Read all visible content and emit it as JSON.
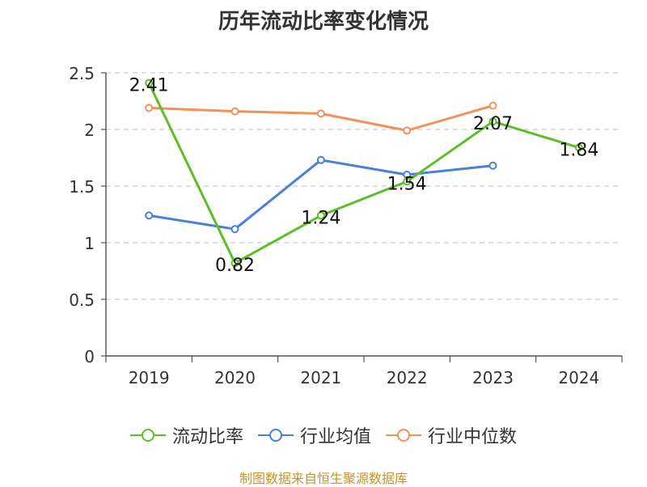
{
  "chart_data": {
    "type": "line",
    "title": "历年流动比率变化情况",
    "categories": [
      "2019",
      "2020",
      "2021",
      "2022",
      "2023",
      "2024"
    ],
    "ylim": [
      0,
      2.5
    ],
    "yticks": [
      "0",
      "0.5",
      "1",
      "1.5",
      "2",
      "2.5"
    ],
    "grid": true,
    "legend_position": "bottom",
    "series": [
      {
        "name": "流动比率",
        "color": "#5cbf2a",
        "values": [
          2.41,
          0.82,
          1.24,
          1.54,
          2.07,
          1.84
        ],
        "labels": [
          "2.41",
          "0.82",
          "1.24",
          "1.54",
          "2.07",
          "1.84"
        ]
      },
      {
        "name": "行业均值",
        "color": "#4a7fdb",
        "values": [
          1.24,
          1.12,
          1.73,
          1.6,
          1.68,
          null
        ]
      },
      {
        "name": "行业中位数",
        "color": "#f4905a",
        "values": [
          2.19,
          2.16,
          2.14,
          1.99,
          2.21,
          null
        ]
      }
    ]
  },
  "source": "制图数据来自恒生聚源数据库"
}
